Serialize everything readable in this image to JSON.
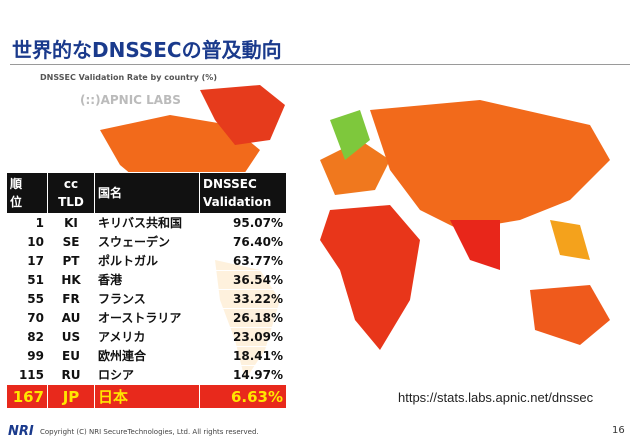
{
  "header": {
    "title": "世界的なDNSSECの普及動向"
  },
  "map": {
    "caption": "DNSSEC Validation Rate by country (%)",
    "source_logo": "(::)APNIC LABS"
  },
  "table": {
    "columns": [
      "順\n位",
      "cc\nTLD",
      "国名",
      "DNSSEC\nValidation"
    ],
    "rows": [
      [
        "1",
        "KI",
        "キリバス共和国",
        "95.07%"
      ],
      [
        "10",
        "SE",
        "スウェーデン",
        "76.40%"
      ],
      [
        "17",
        "PT",
        "ポルトガル",
        "63.77%"
      ],
      [
        "51",
        "HK",
        "香港",
        "36.54%"
      ],
      [
        "55",
        "FR",
        "フランス",
        "33.22%"
      ],
      [
        "70",
        "AU",
        "オーストラリア",
        "26.18%"
      ],
      [
        "82",
        "US",
        "アメリカ",
        "23.09%"
      ],
      [
        "99",
        "EU",
        "欧州連合",
        "18.41%"
      ],
      [
        "115",
        "RU",
        "ロシア",
        "14.97%"
      ],
      [
        "167",
        "JP",
        "日本",
        "6.63%"
      ]
    ],
    "highlight_row": 9
  },
  "source_url": "https://stats.labs.apnic.net/dnssec",
  "footer": {
    "logo": "NRI",
    "copyright": "Copyright (C) NRI SecureTechnologies, Ltd. All rights reserved.",
    "page": "16"
  }
}
